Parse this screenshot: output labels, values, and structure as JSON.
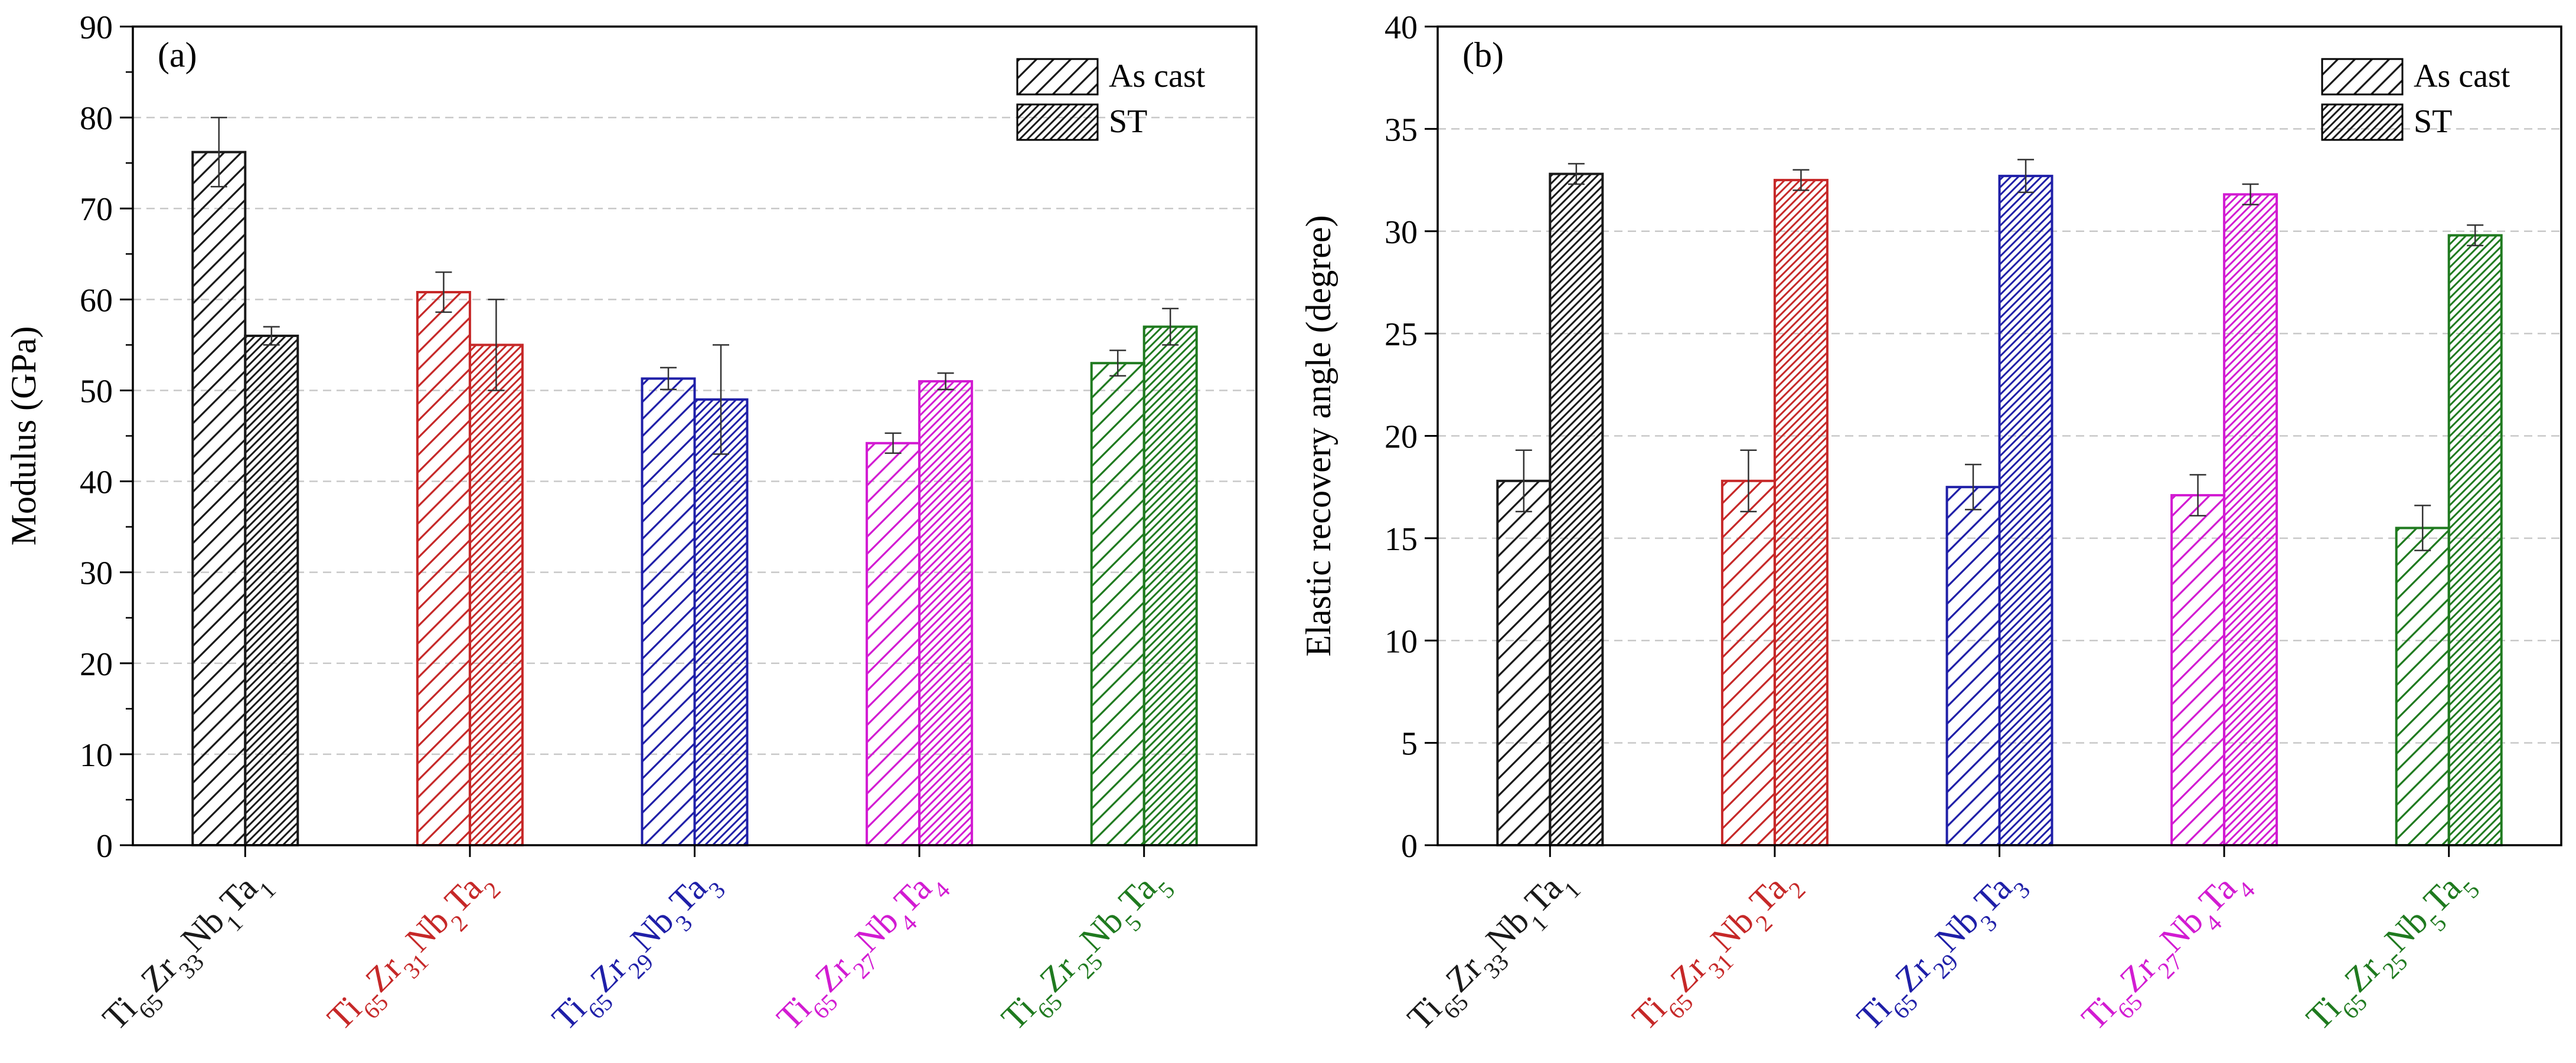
{
  "figure_title": "",
  "chart_data": [
    {
      "type": "bar",
      "panel_label": "(a)",
      "title": "",
      "xlabel": "",
      "ylabel": "Modulus (GPa)",
      "ylim": [
        0,
        90
      ],
      "ytick_step": 10,
      "minor_ticks": true,
      "grid": "horizontal-dashed",
      "legend_position": "top-right",
      "categories": [
        {
          "label": "Ti65Zr33Nb1Ta1",
          "parts": [
            [
              "Ti",
              "65"
            ],
            [
              "Zr",
              "33"
            ],
            [
              "Nb",
              "1"
            ],
            [
              "Ta",
              "1"
            ]
          ],
          "color": "#1a1a1a"
        },
        {
          "label": "Ti65Zr31Nb2Ta2",
          "parts": [
            [
              "Ti",
              "65"
            ],
            [
              "Zr",
              "31"
            ],
            [
              "Nb",
              "2"
            ],
            [
              "Ta",
              "2"
            ]
          ],
          "color": "#c62828"
        },
        {
          "label": "Ti65Zr29Nb3Ta3",
          "parts": [
            [
              "Ti",
              "65"
            ],
            [
              "Zr",
              "29"
            ],
            [
              "Nb",
              "3"
            ],
            [
              "Ta",
              "3"
            ]
          ],
          "color": "#1f1fa8"
        },
        {
          "label": "Ti65Zr27Nb4Ta4",
          "parts": [
            [
              "Ti",
              "65"
            ],
            [
              "Zr",
              "27"
            ],
            [
              "Nb",
              "4"
            ],
            [
              "Ta",
              "4"
            ]
          ],
          "color": "#d21bd2"
        },
        {
          "label": "Ti65Zr25Nb5Ta5",
          "parts": [
            [
              "Ti",
              "65"
            ],
            [
              "Zr",
              "25"
            ],
            [
              "Nb",
              "5"
            ],
            [
              "Ta",
              "5"
            ]
          ],
          "color": "#1f7a1f"
        }
      ],
      "series": [
        {
          "name": "As cast",
          "hatch": "sparse",
          "values": [
            76.2,
            60.8,
            51.3,
            44.2,
            53.0
          ],
          "errors": [
            3.8,
            2.2,
            1.2,
            1.1,
            1.4
          ]
        },
        {
          "name": "ST",
          "hatch": "dense",
          "values": [
            56.0,
            55.0,
            49.0,
            51.0,
            57.0
          ],
          "errors": [
            1.0,
            5.0,
            6.0,
            0.9,
            2.0
          ]
        }
      ]
    },
    {
      "type": "bar",
      "panel_label": "(b)",
      "title": "",
      "xlabel": "",
      "ylabel": "Elastic recovery angle (degree)",
      "ylim": [
        0,
        40
      ],
      "ytick_step": 5,
      "minor_ticks": false,
      "grid": "horizontal-dashed",
      "legend_position": "top-right",
      "categories": [
        {
          "label": "Ti65Zr33Nb1Ta1",
          "parts": [
            [
              "Ti",
              "65"
            ],
            [
              "Zr",
              "33"
            ],
            [
              "Nb",
              "1"
            ],
            [
              "Ta",
              "1"
            ]
          ],
          "color": "#1a1a1a"
        },
        {
          "label": "Ti65Zr31Nb2Ta2",
          "parts": [
            [
              "Ti",
              "65"
            ],
            [
              "Zr",
              "31"
            ],
            [
              "Nb",
              "2"
            ],
            [
              "Ta",
              "2"
            ]
          ],
          "color": "#c62828"
        },
        {
          "label": "Ti65Zr29Nb3Ta3",
          "parts": [
            [
              "Ti",
              "65"
            ],
            [
              "Zr",
              "29"
            ],
            [
              "Nb",
              "3"
            ],
            [
              "Ta",
              "3"
            ]
          ],
          "color": "#1f1fa8"
        },
        {
          "label": "Ti65Zr27Nb4Ta4",
          "parts": [
            [
              "Ti",
              "65"
            ],
            [
              "Zr",
              "27"
            ],
            [
              "Nb",
              "4"
            ],
            [
              "Ta",
              "4"
            ]
          ],
          "color": "#d21bd2"
        },
        {
          "label": "Ti65Zr25Nb5Ta5",
          "parts": [
            [
              "Ti",
              "65"
            ],
            [
              "Zr",
              "25"
            ],
            [
              "Nb",
              "5"
            ],
            [
              "Ta",
              "5"
            ]
          ],
          "color": "#1f7a1f"
        }
      ],
      "series": [
        {
          "name": "As cast",
          "hatch": "sparse",
          "values": [
            17.8,
            17.8,
            17.5,
            17.1,
            15.5
          ],
          "errors": [
            1.5,
            1.5,
            1.1,
            1.0,
            1.1
          ]
        },
        {
          "name": "ST",
          "hatch": "dense",
          "values": [
            32.8,
            32.5,
            32.7,
            31.8,
            29.8
          ],
          "errors": [
            0.5,
            0.5,
            0.8,
            0.5,
            0.5
          ]
        }
      ]
    }
  ]
}
